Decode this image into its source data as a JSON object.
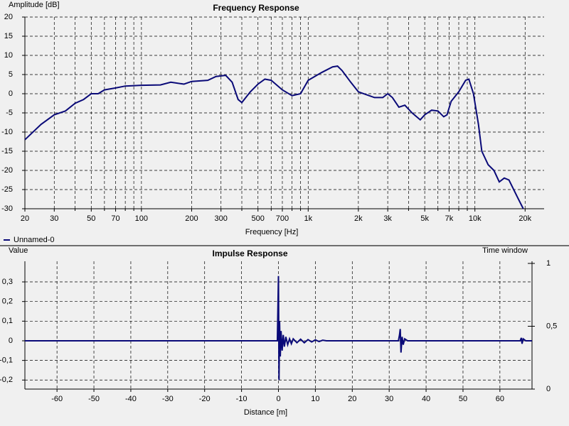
{
  "chart_data": [
    {
      "type": "line",
      "title": "Frequency Response",
      "y_label": "Amplitude [dB]",
      "x_label": "Frequency [Hz]",
      "x_scale": "log",
      "grid": true,
      "legend": "bottom-left",
      "xlim": [
        20,
        26000
      ],
      "ylim": [
        -30,
        20
      ],
      "xticks": [
        20,
        30,
        50,
        70,
        100,
        200,
        300,
        500,
        700,
        {
          "value": 1000,
          "label": "1k"
        },
        {
          "value": 2000,
          "label": "2k"
        },
        {
          "value": 3000,
          "label": "3k"
        },
        {
          "value": 5000,
          "label": "5k"
        },
        {
          "value": 7000,
          "label": "7k"
        },
        {
          "value": 10000,
          "label": "10k"
        },
        {
          "value": 20000,
          "label": "20k"
        }
      ],
      "x_minor_ticks": [
        40,
        60,
        80,
        90,
        400,
        600,
        800,
        900,
        4000,
        6000,
        8000,
        9000
      ],
      "yticks": [
        -30,
        -25,
        -20,
        -15,
        -10,
        -5,
        0,
        5,
        10,
        15,
        20
      ],
      "series": [
        {
          "name": "Unnamed-0",
          "color": "#0a0a78",
          "x": [
            20,
            25,
            30,
            35,
            40,
            45,
            50,
            55,
            60,
            70,
            80,
            100,
            130,
            150,
            180,
            200,
            250,
            280,
            320,
            350,
            380,
            400,
            450,
            500,
            550,
            600,
            700,
            800,
            900,
            1000,
            1200,
            1400,
            1500,
            1600,
            1800,
            2000,
            2500,
            2800,
            3000,
            3200,
            3500,
            3800,
            4200,
            4700,
            5000,
            5500,
            6000,
            6500,
            6800,
            7200,
            8000,
            8800,
            9200,
            9800,
            10500,
            11000,
            12000,
            13000,
            14000,
            15000,
            16000,
            18000,
            19500
          ],
          "values": [
            -12,
            -8,
            -5.5,
            -4.5,
            -2.5,
            -1.5,
            0,
            0,
            1,
            1.5,
            2,
            2.2,
            2.3,
            3,
            2.5,
            3.2,
            3.5,
            4.5,
            4.8,
            3,
            -1.5,
            -2.3,
            0.5,
            2.5,
            3.8,
            3.5,
            1,
            -0.5,
            0,
            3.5,
            5.5,
            7,
            7.2,
            6,
            3,
            0.5,
            -1,
            -1,
            0,
            -1,
            -3.5,
            -3,
            -5,
            -6.8,
            -5.5,
            -4.3,
            -4.5,
            -6,
            -5.5,
            -2,
            0.5,
            3.5,
            3.8,
            0,
            -8,
            -15,
            -18.5,
            -20,
            -23,
            -22,
            -22.5,
            -27,
            -30
          ]
        }
      ]
    },
    {
      "type": "line",
      "title": "Impulse Response",
      "y_label": "Value",
      "x_label": "Distance [m]",
      "y2_label": "Time window",
      "x_scale": "linear",
      "grid": true,
      "xlim": [
        -68.7,
        68.7
      ],
      "ylim": [
        -0.246,
        0.405
      ],
      "y2lim": [
        0,
        1.017
      ],
      "xticks": [
        -60,
        -50,
        -40,
        -30,
        -20,
        -10,
        0,
        10,
        20,
        30,
        40,
        50,
        60
      ],
      "yticks": [
        {
          "value": -0.2,
          "label": "-0,2"
        },
        {
          "value": -0.1,
          "label": "-0,1"
        },
        0,
        {
          "value": 0.1,
          "label": "0,1"
        },
        {
          "value": 0.2,
          "label": "0,2"
        },
        {
          "value": 0.3,
          "label": "0,3"
        }
      ],
      "y2ticks": [
        0,
        {
          "value": 0.5,
          "label": "0,5"
        },
        1
      ],
      "series": [
        {
          "color": "#0a0a78",
          "x": [
            -68.7,
            -0.3,
            0,
            0.15,
            0.3,
            0.5,
            0.7,
            1,
            1.3,
            1.6,
            2,
            2.5,
            3,
            3.5,
            4,
            5,
            6,
            7,
            8,
            9,
            10,
            11,
            12,
            13,
            32.5,
            32.8,
            33,
            33.2,
            33.5,
            33.8,
            34.2,
            35,
            65.5,
            65.8,
            66,
            66.3,
            67,
            68.7
          ],
          "values": [
            0,
            0,
            0.33,
            -0.2,
            0.1,
            -0.08,
            0.05,
            -0.05,
            0.03,
            -0.03,
            0.02,
            -0.02,
            0.01,
            -0.015,
            0.01,
            -0.01,
            0.008,
            -0.01,
            0.006,
            -0.006,
            0.005,
            -0.004,
            0.003,
            0,
            0,
            0.03,
            0.06,
            -0.06,
            0.02,
            -0.02,
            0.01,
            0,
            0,
            0.015,
            -0.015,
            0.01,
            0,
            0
          ]
        }
      ]
    }
  ]
}
